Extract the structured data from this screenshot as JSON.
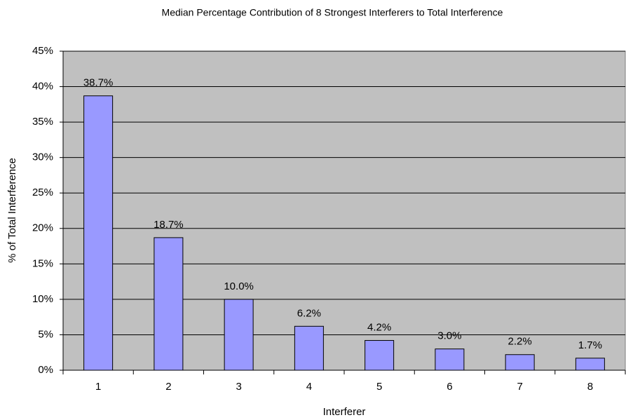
{
  "chart_data": {
    "type": "bar",
    "title": "Median Percentage Contribution of 8 Strongest Interferers to Total Interference",
    "x_label": "Interferer",
    "y_label": "% of Total Interference",
    "categories": [
      "1",
      "2",
      "3",
      "4",
      "5",
      "6",
      "7",
      "8"
    ],
    "values": [
      38.7,
      18.7,
      10,
      6.2,
      4.2,
      3,
      2.2,
      1.7
    ],
    "value_labels": [
      "38.7%",
      "18.7%",
      "10.0%",
      "6.2%",
      "4.2%",
      "3.0%",
      "2.2%",
      "1.7%"
    ],
    "color": "#9999ff",
    "ylim": [
      0,
      45
    ],
    "yticks": [
      {
        "value": 0,
        "label": "0%"
      },
      {
        "value": 5,
        "label": "5%"
      },
      {
        "value": 10,
        "label": "10%"
      },
      {
        "value": 15,
        "label": "15%"
      },
      {
        "value": 20,
        "label": "20%"
      },
      {
        "value": 25,
        "label": "25%"
      },
      {
        "value": 30,
        "label": "30%"
      },
      {
        "value": 35,
        "label": "35%"
      },
      {
        "value": 40,
        "label": "40%"
      },
      {
        "value": 45,
        "label": "45%"
      }
    ],
    "grid": true
  }
}
